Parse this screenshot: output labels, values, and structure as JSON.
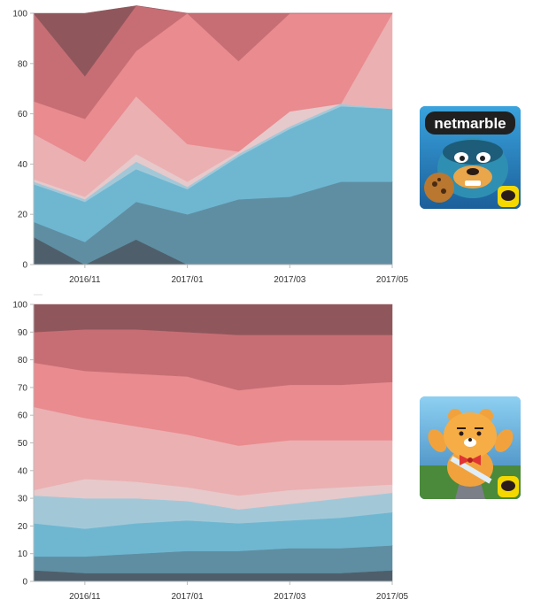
{
  "chart_data": [
    {
      "type": "area",
      "stacked": true,
      "x": [
        "2016/10",
        "2016/11",
        "2016/12",
        "2017/01",
        "2017/02",
        "2017/03",
        "2017/04",
        "2017/05"
      ],
      "xticks": [
        "2016/11",
        "2017/01",
        "2017/03",
        "2017/05"
      ],
      "yticks": [
        "0",
        "20",
        "40",
        "60",
        "80",
        "100"
      ],
      "ylim": [
        0,
        100
      ],
      "grid": false,
      "series": [
        {
          "color": "#4e5f6b",
          "values": [
            11,
            0,
            10,
            0,
            0,
            0,
            0,
            0
          ]
        },
        {
          "color": "#5f8ea2",
          "values": [
            6,
            9,
            15,
            20,
            26,
            27,
            33,
            33
          ]
        },
        {
          "color": "#6fb7d1",
          "values": [
            15,
            16,
            13,
            10,
            17,
            27,
            30,
            29
          ]
        },
        {
          "color": "#a2c8d8",
          "values": [
            1,
            1,
            3,
            1,
            1,
            1,
            1,
            0
          ]
        },
        {
          "color": "#e6c9cb",
          "values": [
            1,
            1,
            3,
            2,
            1,
            6,
            0,
            0
          ]
        },
        {
          "color": "#ebb0b2",
          "values": [
            18,
            14,
            23,
            15,
            0,
            0,
            0,
            38
          ]
        },
        {
          "color": "#e98b8f",
          "values": [
            13,
            17,
            18,
            52,
            36,
            39,
            36,
            0
          ]
        },
        {
          "color": "#c76e74",
          "values": [
            35,
            17,
            18,
            0,
            19,
            0,
            0,
            0
          ]
        },
        {
          "color": "#8f575c",
          "values": [
            0,
            25,
            0,
            0,
            0,
            0,
            0,
            0
          ]
        }
      ]
    },
    {
      "type": "area",
      "stacked": true,
      "x": [
        "2016/10",
        "2016/11",
        "2016/12",
        "2017/01",
        "2017/02",
        "2017/03",
        "2017/04",
        "2017/05"
      ],
      "xticks": [
        "2016/11",
        "2017/01",
        "2017/03",
        "2017/05"
      ],
      "yticks": [
        "0",
        "10",
        "20",
        "30",
        "40",
        "50",
        "60",
        "70",
        "80",
        "90",
        "100"
      ],
      "ylim": [
        0,
        100
      ],
      "grid": false,
      "series": [
        {
          "color": "#4e5f6b",
          "values": [
            4,
            3,
            3,
            3,
            3,
            3,
            3,
            4
          ]
        },
        {
          "color": "#5f8ea2",
          "values": [
            5,
            6,
            7,
            8,
            8,
            9,
            9,
            9
          ]
        },
        {
          "color": "#6fb7d1",
          "values": [
            12,
            10,
            11,
            11,
            10,
            10,
            11,
            12
          ]
        },
        {
          "color": "#a2c8d8",
          "values": [
            10,
            11,
            9,
            7,
            5,
            6,
            7,
            7
          ]
        },
        {
          "color": "#e6c9cb",
          "values": [
            2,
            7,
            6,
            5,
            5,
            5,
            4,
            3
          ]
        },
        {
          "color": "#ebb0b2",
          "values": [
            30,
            22,
            20,
            19,
            18,
            18,
            17,
            16
          ]
        },
        {
          "color": "#e98b8f",
          "values": [
            16,
            17,
            19,
            21,
            20,
            20,
            20,
            21
          ]
        },
        {
          "color": "#c76e74",
          "values": [
            11,
            15,
            16,
            16,
            20,
            18,
            18,
            17
          ]
        },
        {
          "color": "#8f575c",
          "values": [
            10,
            9,
            9,
            10,
            11,
            11,
            11,
            11
          ]
        }
      ]
    }
  ],
  "icons": {
    "top": {
      "name": "netmarble-game-icon",
      "logo_text": "netmarble",
      "bg": "#1e86c7"
    },
    "bottom": {
      "name": "kakao-ryan-game-icon",
      "bg": "#5aa7d8"
    }
  }
}
